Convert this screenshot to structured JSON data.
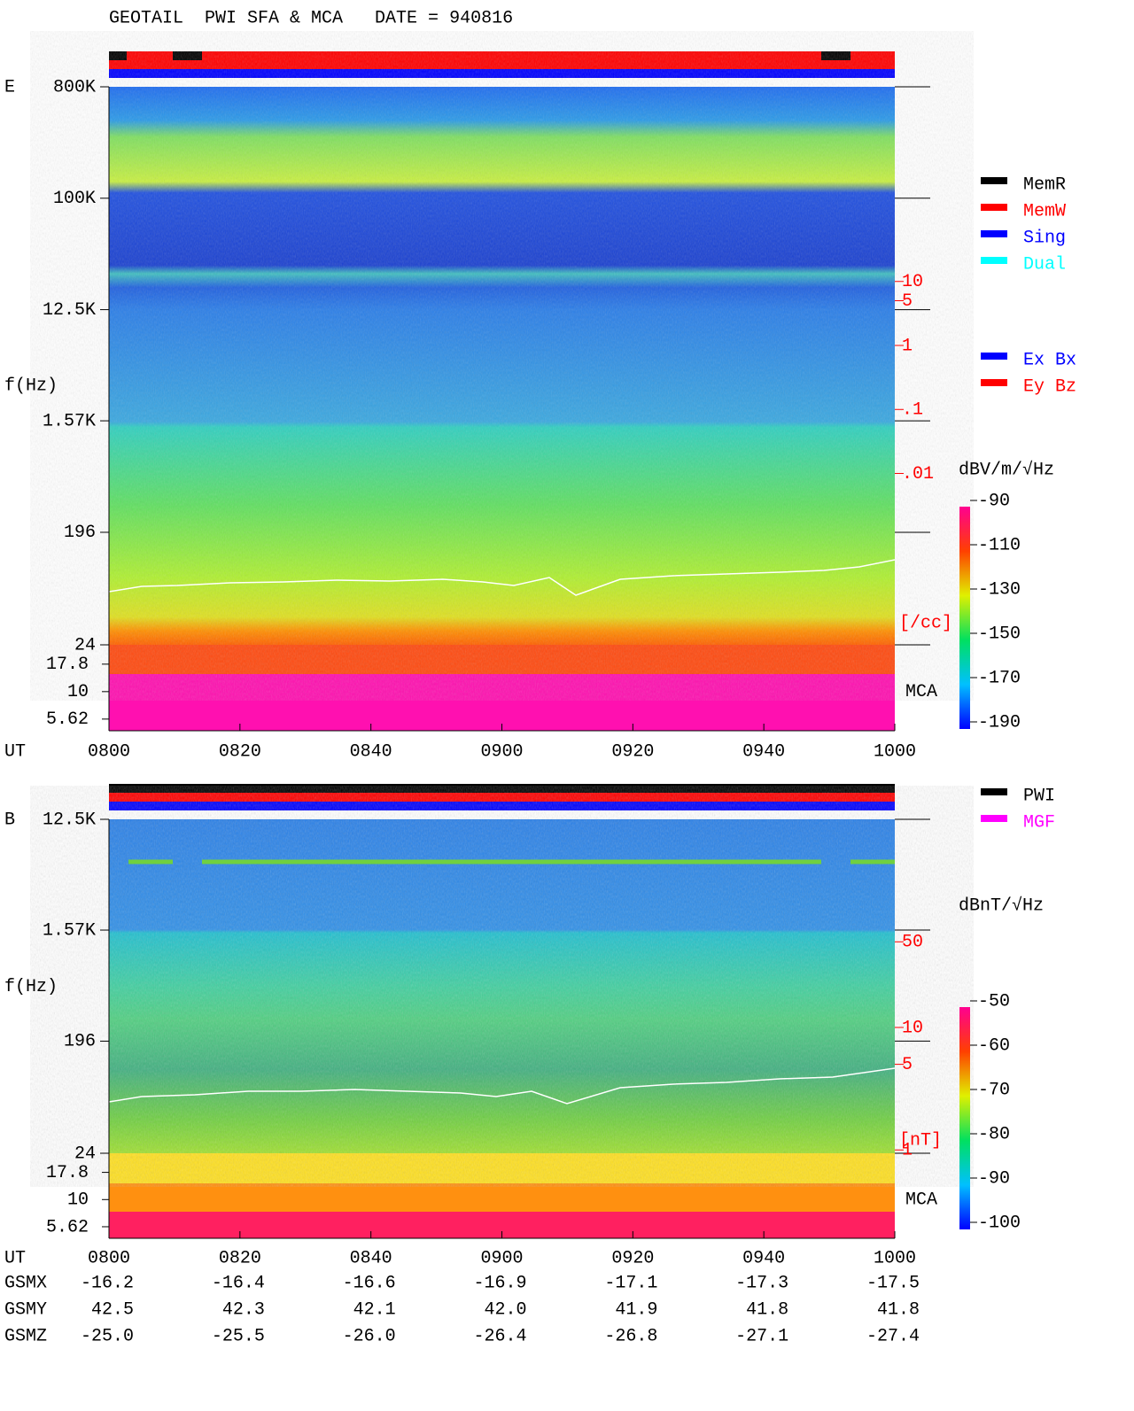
{
  "title": "GEOTAIL  PWI SFA & MCA   DATE = 940816",
  "chart_data": [
    {
      "type": "spectrogram",
      "panel_label": "E",
      "y_label": "f(Hz)",
      "x_label": "UT",
      "xlim": [
        480,
        600
      ],
      "xticks": [
        {
          "value": 480,
          "label": "0800"
        },
        {
          "value": 500,
          "label": "0820"
        },
        {
          "value": 520,
          "label": "0840"
        },
        {
          "value": 540,
          "label": "0900"
        },
        {
          "value": 560,
          "label": "0920"
        },
        {
          "value": 580,
          "label": "0940"
        },
        {
          "value": 600,
          "label": "1000"
        }
      ],
      "log_y": true,
      "ylim": [
        24,
        800000
      ],
      "yticks": [
        {
          "value": 800000,
          "label": "800K"
        },
        {
          "value": 100000,
          "label": "100K"
        },
        {
          "value": 12500,
          "label": "12.5K"
        },
        {
          "value": 1570,
          "label": "1.57K"
        },
        196,
        24
      ],
      "mca_label": "MCA",
      "mca_ylim": [
        4.4,
        26.7
      ],
      "mca_yticks": [
        17.8,
        10,
        5.62
      ],
      "y2_label": "[/cc]",
      "y2_color": "#ff0000",
      "y2lim": [
        2.1e-05,
        11000
      ],
      "y2ticks": [
        10,
        5,
        1,
        {
          "value": 0.1,
          "label": ".1"
        },
        {
          "value": 0.01,
          "label": ".01"
        }
      ],
      "colorbar": {
        "label": "dBV/m/√Hz",
        "clim": [
          -193.2,
          -92.8
        ],
        "ticks": [
          -90,
          -110,
          -130,
          -150,
          -170,
          -190
        ]
      },
      "legend": [
        {
          "name": "MemR",
          "color": "#000000"
        },
        {
          "name": "MemW",
          "color": "#ff0000"
        },
        {
          "name": "Sing",
          "color": "#0000ff"
        },
        {
          "name": "Dual",
          "color": "#00ffff"
        }
      ],
      "legend2": [
        {
          "name": "Ex Bx",
          "color": "#0000ff"
        },
        {
          "name": "Ey Bz",
          "color": "#ff0000"
        }
      ]
    },
    {
      "type": "spectrogram",
      "panel_label": "B",
      "y_label": "f(Hz)",
      "x_label": "UT",
      "xlim": [
        480,
        600
      ],
      "xticks": [
        {
          "value": 480,
          "label": "0800"
        },
        {
          "value": 500,
          "label": "0820"
        },
        {
          "value": 520,
          "label": "0840"
        },
        {
          "value": 540,
          "label": "0900"
        },
        {
          "value": 560,
          "label": "0920"
        },
        {
          "value": 580,
          "label": "0940"
        },
        {
          "value": 600,
          "label": "1000"
        }
      ],
      "log_y": true,
      "ylim": [
        24,
        12500
      ],
      "yticks": [
        {
          "value": 12500,
          "label": "12.5K"
        },
        {
          "value": 1570,
          "label": "1.57K"
        },
        196,
        24
      ],
      "mca_label": "MCA",
      "mca_ylim": [
        4.4,
        26.7
      ],
      "mca_yticks": [
        17.8,
        10,
        5.62
      ],
      "y2_label": "[nT]",
      "y2_color": "#ff0000",
      "y2lim": [
        0.94,
        500
      ],
      "y2ticks": [
        50,
        10,
        5,
        1
      ],
      "colorbar": {
        "label": "dBnT/√Hz",
        "clim": [
          -101.6,
          -51.4
        ],
        "ticks": [
          -50,
          -60,
          -70,
          -80,
          -90,
          -100
        ]
      },
      "legend": [
        {
          "name": "PWI",
          "color": "#000000"
        },
        {
          "name": "MGF",
          "color": "#ff00ff"
        }
      ]
    }
  ],
  "orbit": [
    {
      "label": "GSMX",
      "values": [
        "-16.2",
        "-16.4",
        "-16.6",
        "-16.9",
        "-17.1",
        "-17.3",
        "-17.5"
      ]
    },
    {
      "label": "GSMY",
      "values": [
        "42.5",
        "42.3",
        "42.1",
        "42.0",
        "41.9",
        "41.8",
        "41.8"
      ]
    },
    {
      "label": "GSMZ",
      "values": [
        "-25.0",
        "-25.5",
        "-26.0",
        "-26.4",
        "-26.8",
        "-27.1",
        "-27.4"
      ]
    }
  ]
}
